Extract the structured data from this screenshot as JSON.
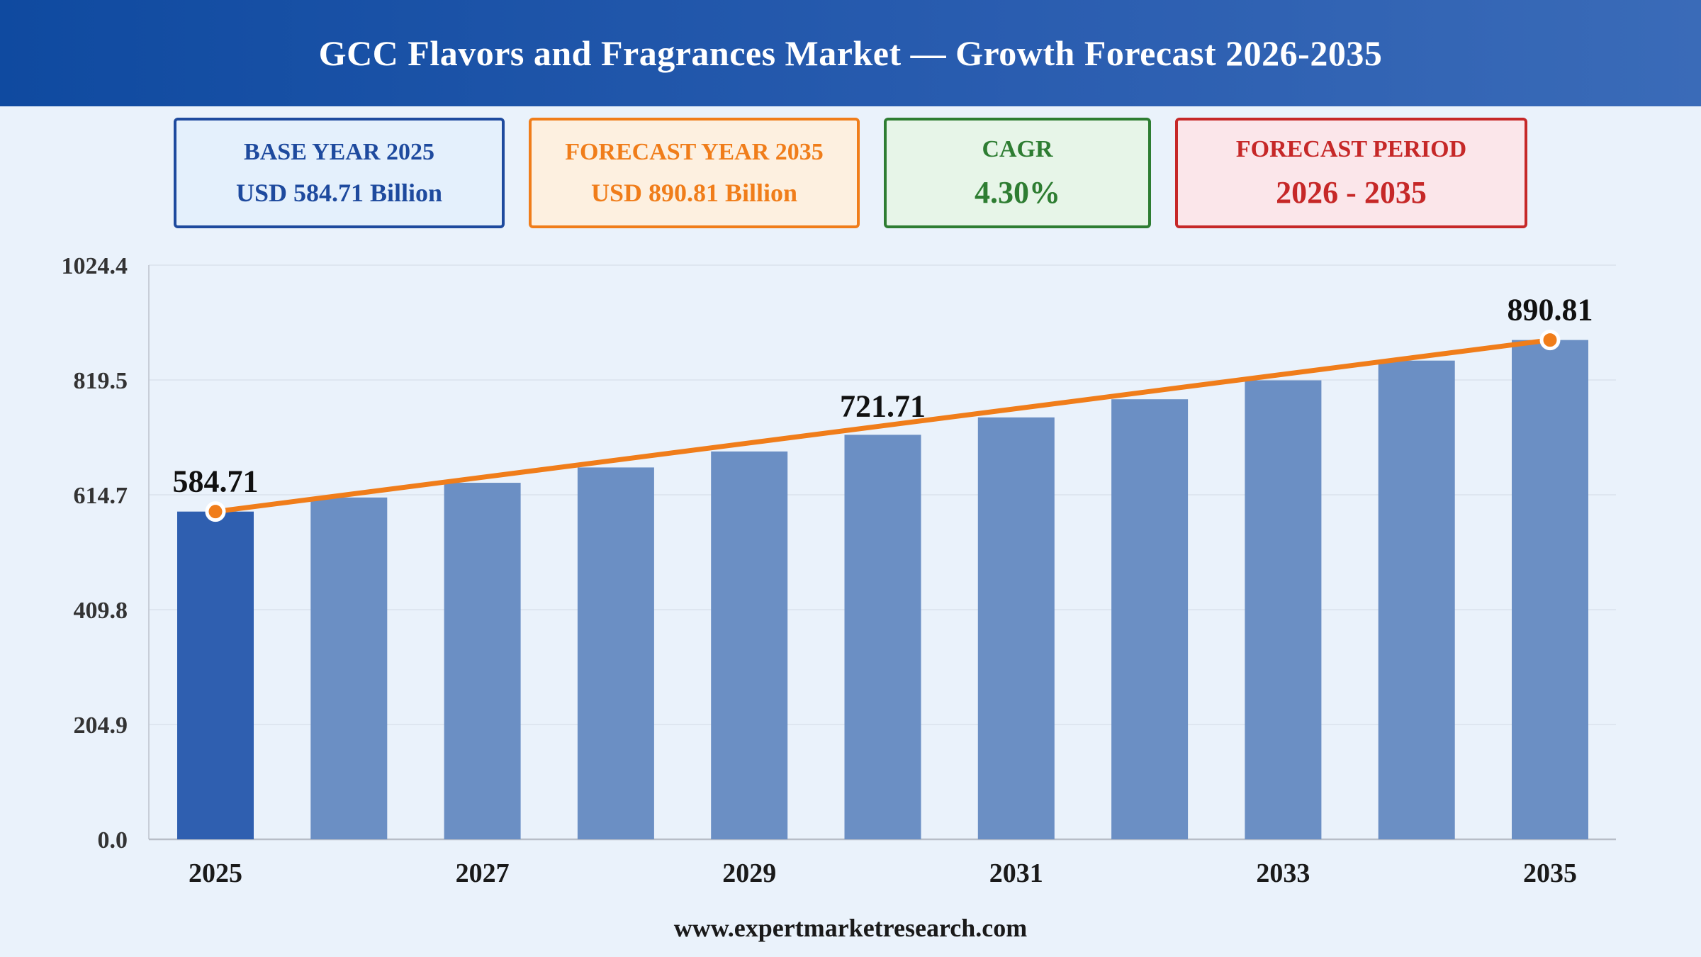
{
  "header": {
    "title": "GCC Flavors and Fragrances Market — Growth Forecast 2026-2035"
  },
  "cards": {
    "base": {
      "label": "BASE YEAR 2025",
      "value": "USD 584.71 Billion"
    },
    "forecast": {
      "label": "FORECAST YEAR 2035",
      "value": "USD 890.81 Billion"
    },
    "cagr": {
      "label": "CAGR",
      "value": "4.30%"
    },
    "period": {
      "label": "FORECAST PERIOD",
      "value": "2026 - 2035"
    }
  },
  "colors": {
    "highlight_bar": "#2f5fb0",
    "bar": "#6b8fc4",
    "trend_line": "#f07d1a",
    "grid": "#d9e1ec"
  },
  "chart_data": {
    "type": "bar",
    "categories": [
      "2025",
      "2026",
      "2027",
      "2028",
      "2029",
      "2030",
      "2031",
      "2032",
      "2033",
      "2034",
      "2035"
    ],
    "x_tick_labels": [
      "2025",
      "",
      "2027",
      "",
      "2029",
      "",
      "2031",
      "",
      "2033",
      "",
      "2035"
    ],
    "values": [
      584.71,
      609.85,
      636.08,
      663.43,
      691.96,
      721.71,
      752.74,
      785.11,
      818.87,
      854.08,
      890.81
    ],
    "yticks": [
      "0.0",
      "204.9",
      "409.8",
      "614.7",
      "819.5",
      "1024.4"
    ],
    "ylim": [
      0,
      1024.4
    ],
    "data_labels": [
      {
        "index": 0,
        "text": "584.71"
      },
      {
        "index": 5,
        "text": "721.71"
      },
      {
        "index": 10,
        "text": "890.81"
      }
    ],
    "trend_line": true,
    "highlight_index": 0,
    "grid": true,
    "title": "",
    "xlabel": "",
    "ylabel": ""
  },
  "footer": {
    "url": "www.expertmarketresearch.com"
  }
}
